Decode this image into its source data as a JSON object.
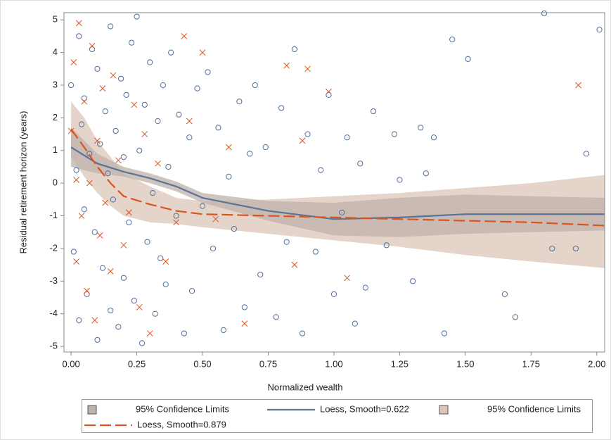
{
  "chart_data": {
    "type": "scatter-loess",
    "x_label": "Normalized wealth",
    "y_label": "Residual retirement horizon (years)",
    "xlim": [
      -0.027,
      2.03
    ],
    "ylim": [
      -5.17,
      5.22
    ],
    "xticks": [
      {
        "value": 0,
        "label": "0.00"
      },
      {
        "value": 0.25,
        "label": "0.25"
      },
      {
        "value": 0.5,
        "label": "0.50"
      },
      {
        "value": 0.75,
        "label": "0.75"
      },
      {
        "value": 1,
        "label": "1.00"
      },
      {
        "value": 1.25,
        "label": "1.25"
      },
      {
        "value": 1.5,
        "label": "1.50"
      },
      {
        "value": 1.75,
        "label": "1.75"
      },
      {
        "value": 2,
        "label": "2.00"
      }
    ],
    "yticks": [
      -5,
      -4,
      -3,
      -2,
      -1,
      0,
      1,
      2,
      3,
      4,
      5
    ],
    "scatter": [
      {
        "marker": "circle",
        "color": "#4f6d99",
        "x": [
          0.0,
          0.01,
          0.02,
          0.03,
          0.03,
          0.04,
          0.05,
          0.05,
          0.06,
          0.07,
          0.08,
          0.09,
          0.1,
          0.1,
          0.11,
          0.12,
          0.13,
          0.14,
          0.15,
          0.15,
          0.16,
          0.17,
          0.18,
          0.19,
          0.2,
          0.2,
          0.21,
          0.22,
          0.23,
          0.24,
          0.25,
          0.26,
          0.27,
          0.28,
          0.29,
          0.3,
          0.31,
          0.32,
          0.33,
          0.34,
          0.35,
          0.36,
          0.37,
          0.38,
          0.4,
          0.41,
          0.43,
          0.45,
          0.46,
          0.48,
          0.5,
          0.52,
          0.54,
          0.56,
          0.58,
          0.6,
          0.62,
          0.64,
          0.66,
          0.68,
          0.7,
          0.72,
          0.74,
          0.78,
          0.8,
          0.82,
          0.85,
          0.88,
          0.9,
          0.93,
          0.95,
          0.98,
          1.0,
          1.03,
          1.05,
          1.08,
          1.1,
          1.12,
          1.15,
          1.2,
          1.23,
          1.25,
          1.3,
          1.33,
          1.35,
          1.38,
          1.42,
          1.45,
          1.51,
          1.65,
          1.69,
          1.8,
          1.83,
          1.92,
          1.96,
          2.01
        ],
        "y": [
          3.0,
          -2.1,
          0.4,
          4.5,
          -4.2,
          1.8,
          -0.8,
          2.6,
          -3.4,
          0.9,
          4.1,
          -1.5,
          3.5,
          -4.8,
          1.2,
          -2.6,
          2.2,
          0.3,
          -3.9,
          4.8,
          -0.5,
          1.6,
          -4.4,
          3.2,
          0.8,
          -2.9,
          2.7,
          -1.2,
          4.3,
          -3.6,
          5.1,
          1.0,
          -4.9,
          2.4,
          -1.8,
          3.7,
          -0.3,
          -4.0,
          1.9,
          -2.3,
          3.0,
          -3.1,
          0.5,
          4.0,
          -1.0,
          2.1,
          -4.6,
          1.4,
          -3.3,
          2.9,
          -0.7,
          3.4,
          -2.0,
          1.7,
          -4.5,
          0.2,
          -1.4,
          2.5,
          -3.8,
          0.9,
          3.0,
          -2.8,
          1.1,
          -4.1,
          2.3,
          -1.8,
          4.1,
          -4.6,
          1.5,
          -2.1,
          0.4,
          2.7,
          -3.4,
          -0.9,
          1.4,
          -4.3,
          0.6,
          -3.2,
          2.2,
          -1.9,
          1.5,
          0.1,
          -3.0,
          1.7,
          0.3,
          1.4,
          -4.6,
          4.4,
          3.8,
          -3.4,
          -4.1,
          5.2,
          -2.0,
          -2.0,
          0.9,
          4.7
        ]
      },
      {
        "marker": "x",
        "color": "#d9541e",
        "x": [
          0.0,
          0.01,
          0.02,
          0.02,
          0.03,
          0.04,
          0.05,
          0.06,
          0.07,
          0.08,
          0.09,
          0.1,
          0.11,
          0.12,
          0.13,
          0.15,
          0.16,
          0.18,
          0.2,
          0.22,
          0.24,
          0.26,
          0.28,
          0.3,
          0.33,
          0.36,
          0.4,
          0.43,
          0.45,
          0.5,
          0.55,
          0.6,
          0.66,
          0.82,
          0.85,
          0.88,
          0.9,
          0.98,
          1.05,
          1.93
        ],
        "y": [
          1.6,
          3.7,
          -2.4,
          0.1,
          4.9,
          -1.0,
          2.5,
          -3.3,
          0.0,
          4.2,
          -4.2,
          1.3,
          -1.6,
          2.9,
          -0.6,
          -2.7,
          3.3,
          0.7,
          -1.9,
          -0.9,
          2.4,
          -3.8,
          1.5,
          -4.6,
          0.6,
          -2.4,
          -1.2,
          4.5,
          1.9,
          4.0,
          -1.1,
          1.1,
          -4.3,
          3.6,
          -2.5,
          1.3,
          3.5,
          2.8,
          -2.9,
          3.0
        ]
      }
    ],
    "series": [
      {
        "name": "Loess, Smooth=0.622",
        "color": "#5a7397",
        "dash": false,
        "band": {
          "name": "95% Confidence Limits",
          "color": "#bfb1ab",
          "upper": [
            1.7,
            0.9,
            0.5,
            0.3,
            0.05,
            -0.3,
            -0.55,
            -0.6,
            -0.45,
            -0.35,
            -0.4,
            -0.45
          ],
          "lower": [
            0.5,
            0.3,
            0.2,
            0.0,
            -0.25,
            -0.6,
            -1.15,
            -1.6,
            -1.65,
            -1.55,
            -1.5,
            -1.45
          ]
        },
        "x": [
          0,
          0.1,
          0.2,
          0.3,
          0.4,
          0.5,
          0.75,
          1,
          1.25,
          1.5,
          1.75,
          2.03
        ],
        "values": [
          1.1,
          0.6,
          0.35,
          0.15,
          -0.1,
          -0.45,
          -0.85,
          -1.1,
          -1.05,
          -0.95,
          -0.95,
          -0.95
        ]
      },
      {
        "name": "Loess, Smooth=0.879",
        "color": "#d9541e",
        "dash": true,
        "band": {
          "name": "95% Confidence Limits",
          "color": "#dcc6b8",
          "upper": [
            2.5,
            2.0,
            1.3,
            0.8,
            0.3,
            -0.1,
            -0.45,
            -0.55,
            -0.5,
            -0.4,
            -0.3,
            -0.15,
            0.0,
            0.25
          ],
          "lower": [
            0.8,
            0.2,
            -0.3,
            -0.7,
            -1.0,
            -1.2,
            -1.25,
            -1.35,
            -1.55,
            -1.75,
            -1.95,
            -2.2,
            -2.4,
            -2.6
          ]
        },
        "x": [
          0,
          0.05,
          0.1,
          0.15,
          0.2,
          0.3,
          0.4,
          0.5,
          0.75,
          1,
          1.25,
          1.5,
          1.75,
          2.03
        ],
        "values": [
          1.65,
          1.1,
          0.5,
          0.0,
          -0.4,
          -0.65,
          -0.85,
          -0.95,
          -1.0,
          -1.05,
          -1.1,
          -1.15,
          -1.2,
          -1.3
        ]
      }
    ]
  }
}
